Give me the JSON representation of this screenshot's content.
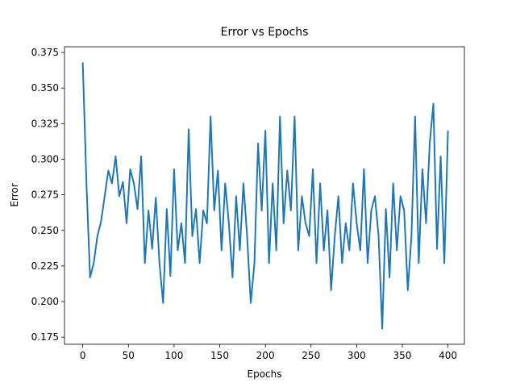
{
  "chart_data": {
    "type": "line",
    "title": "Error vs Epochs",
    "xlabel": "Epochs",
    "ylabel": "Error",
    "color": "#1f77b4",
    "x": [
      0,
      4,
      8,
      12,
      16,
      20,
      24,
      28,
      32,
      36,
      40,
      44,
      48,
      52,
      56,
      60,
      64,
      68,
      72,
      76,
      80,
      84,
      88,
      92,
      96,
      100,
      104,
      108,
      112,
      116,
      120,
      124,
      128,
      132,
      136,
      140,
      144,
      148,
      152,
      156,
      160,
      164,
      168,
      172,
      176,
      180,
      184,
      188,
      192,
      196,
      200,
      204,
      208,
      212,
      216,
      220,
      224,
      228,
      232,
      236,
      240,
      244,
      248,
      252,
      256,
      260,
      264,
      268,
      272,
      276,
      280,
      284,
      288,
      292,
      296,
      300,
      304,
      308,
      312,
      316,
      320,
      324,
      328,
      332,
      336,
      340,
      344,
      348,
      352,
      356,
      360,
      364,
      368,
      372,
      376,
      380,
      384,
      388,
      392,
      396,
      400
    ],
    "values": [
      0.368,
      0.284,
      0.217,
      0.227,
      0.246,
      0.256,
      0.274,
      0.292,
      0.283,
      0.302,
      0.274,
      0.284,
      0.255,
      0.293,
      0.283,
      0.265,
      0.302,
      0.227,
      0.264,
      0.237,
      0.273,
      0.227,
      0.199,
      0.265,
      0.218,
      0.293,
      0.236,
      0.255,
      0.227,
      0.321,
      0.246,
      0.265,
      0.227,
      0.264,
      0.255,
      0.33,
      0.264,
      0.292,
      0.236,
      0.283,
      0.255,
      0.217,
      0.274,
      0.236,
      0.283,
      0.246,
      0.199,
      0.227,
      0.311,
      0.264,
      0.32,
      0.227,
      0.283,
      0.236,
      0.33,
      0.255,
      0.292,
      0.264,
      0.33,
      0.236,
      0.274,
      0.255,
      0.246,
      0.293,
      0.227,
      0.283,
      0.236,
      0.264,
      0.208,
      0.246,
      0.274,
      0.227,
      0.255,
      0.236,
      0.283,
      0.255,
      0.236,
      0.293,
      0.227,
      0.264,
      0.274,
      0.246,
      0.181,
      0.265,
      0.217,
      0.283,
      0.236,
      0.274,
      0.264,
      0.208,
      0.246,
      0.33,
      0.227,
      0.293,
      0.255,
      0.311,
      0.339,
      0.237,
      0.302,
      0.227,
      0.32
    ],
    "xlim": [
      -20,
      418
    ],
    "ylim": [
      0.17,
      0.379
    ],
    "xticks": [
      0,
      50,
      100,
      150,
      200,
      250,
      300,
      350,
      400
    ],
    "yticks": [
      0.175,
      {
        "value": 0.2,
        "label": "0.200"
      },
      0.225,
      {
        "value": 0.25,
        "label": "0.250"
      },
      0.275,
      {
        "value": 0.3,
        "label": "0.300"
      },
      0.325,
      {
        "value": 0.35,
        "label": "0.350"
      },
      0.375
    ]
  }
}
